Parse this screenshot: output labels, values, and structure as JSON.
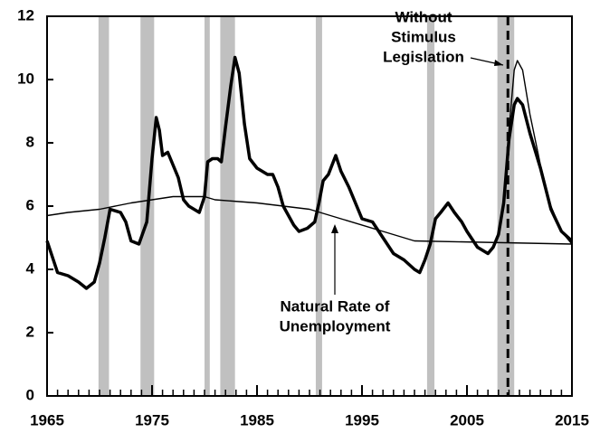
{
  "chart_data": {
    "type": "line",
    "xlim": [
      1965,
      2015
    ],
    "xticks": [
      1965,
      1975,
      1985,
      1995,
      2005,
      2015
    ],
    "xminorticks": [
      1966,
      1967,
      1968,
      1969,
      1970,
      1971,
      1972,
      1973,
      1974,
      1976,
      1977,
      1978,
      1979,
      1980,
      1981,
      1982,
      1983,
      1984,
      1986,
      1987,
      1988,
      1989,
      1990,
      1991,
      1992,
      1993,
      1994,
      1996,
      1997,
      1998,
      1999,
      2000,
      2001,
      2002,
      2003,
      2004,
      2006,
      2007,
      2008,
      2009,
      2010,
      2011,
      2012,
      2013,
      2014
    ],
    "ylim": [
      0,
      12
    ],
    "yticks": [
      0,
      2,
      4,
      6,
      8,
      10,
      12
    ],
    "recessions": [
      [
        1969.9,
        1970.9
      ],
      [
        1973.9,
        1975.2
      ],
      [
        1980.0,
        1980.5
      ],
      [
        1981.5,
        1982.9
      ],
      [
        1990.6,
        1991.2
      ],
      [
        2001.2,
        2001.9
      ],
      [
        2007.9,
        2009.5
      ]
    ],
    "recession_color": "#c0c0c0",
    "vline": 2008.9,
    "series": [
      {
        "color": "#000000",
        "x": [
          1965,
          1965.5,
          1966,
          1967,
          1968,
          1968.75,
          1969.5,
          1970,
          1970.5,
          1971,
          1972,
          1972.5,
          1973,
          1973.75,
          1974.5,
          1975,
          1975.4,
          1975.7,
          1976,
          1976.5,
          1977,
          1977.5,
          1978,
          1978.5,
          1979,
          1979.5,
          1980,
          1980.3,
          1980.75,
          1981.25,
          1981.6,
          1982,
          1982.5,
          1982.9,
          1983.3,
          1983.8,
          1984.3,
          1985,
          1986,
          1986.5,
          1987,
          1987.5,
          1988,
          1988.5,
          1989,
          1989.8,
          1990.5,
          1990.9,
          1991.3,
          1991.8,
          1992.5,
          1993,
          1993.75,
          1994.5,
          1995,
          1996,
          1997,
          1998,
          1999,
          2000,
          2000.5,
          2001,
          2001.5,
          2002,
          2002.5,
          2003.2,
          2003.8,
          2004.5,
          2005,
          2006,
          2007,
          2007.5,
          2008,
          2008.5,
          2009,
          2009.5,
          2009.8,
          2010.3,
          2011,
          2012,
          2013,
          2014,
          2015
        ],
        "values": [
          4.9,
          4.4,
          3.9,
          3.8,
          3.6,
          3.4,
          3.6,
          4.2,
          5.0,
          5.9,
          5.8,
          5.5,
          4.9,
          4.8,
          5.5,
          7.5,
          8.8,
          8.4,
          7.6,
          7.7,
          7.3,
          6.9,
          6.2,
          6.0,
          5.9,
          5.8,
          6.3,
          7.4,
          7.5,
          7.5,
          7.4,
          8.5,
          9.8,
          10.7,
          10.2,
          8.6,
          7.5,
          7.2,
          7.0,
          7.0,
          6.6,
          6.0,
          5.7,
          5.4,
          5.2,
          5.3,
          5.5,
          6.1,
          6.8,
          7.0,
          7.6,
          7.1,
          6.6,
          6.0,
          5.6,
          5.5,
          5.0,
          4.5,
          4.3,
          4.0,
          3.9,
          4.3,
          4.8,
          5.6,
          5.8,
          6.1,
          5.8,
          5.5,
          5.2,
          4.7,
          4.5,
          4.7,
          5.1,
          6.1,
          8.1,
          9.2,
          9.4,
          9.2,
          8.3,
          7.2,
          5.9,
          5.2,
          4.9
        ]
      },
      {
        "color": "#000000",
        "x": [
          1965,
          1967,
          1970,
          1973,
          1975,
          1977,
          1980,
          1981,
          1985,
          1990,
          1993,
          1997,
          2000,
          2015
        ],
        "values": [
          5.7,
          5.8,
          5.9,
          6.1,
          6.2,
          6.3,
          6.3,
          6.2,
          6.1,
          5.9,
          5.6,
          5.2,
          4.9,
          4.8
        ]
      },
      {
        "color": "#000000",
        "x": [
          2008.5,
          2009,
          2009.5,
          2009.8,
          2010.3,
          2011,
          2012,
          2013,
          2014,
          2015
        ],
        "values": [
          6.1,
          8.4,
          10.3,
          10.6,
          10.3,
          8.9,
          7.3,
          6.0,
          5.2,
          4.8
        ]
      }
    ],
    "annotations": [
      {
        "lines": [
          "Without",
          "Stimulus",
          "Legislation"
        ]
      },
      {
        "lines": [
          "Natural Rate of",
          "Unemployment"
        ]
      }
    ]
  }
}
